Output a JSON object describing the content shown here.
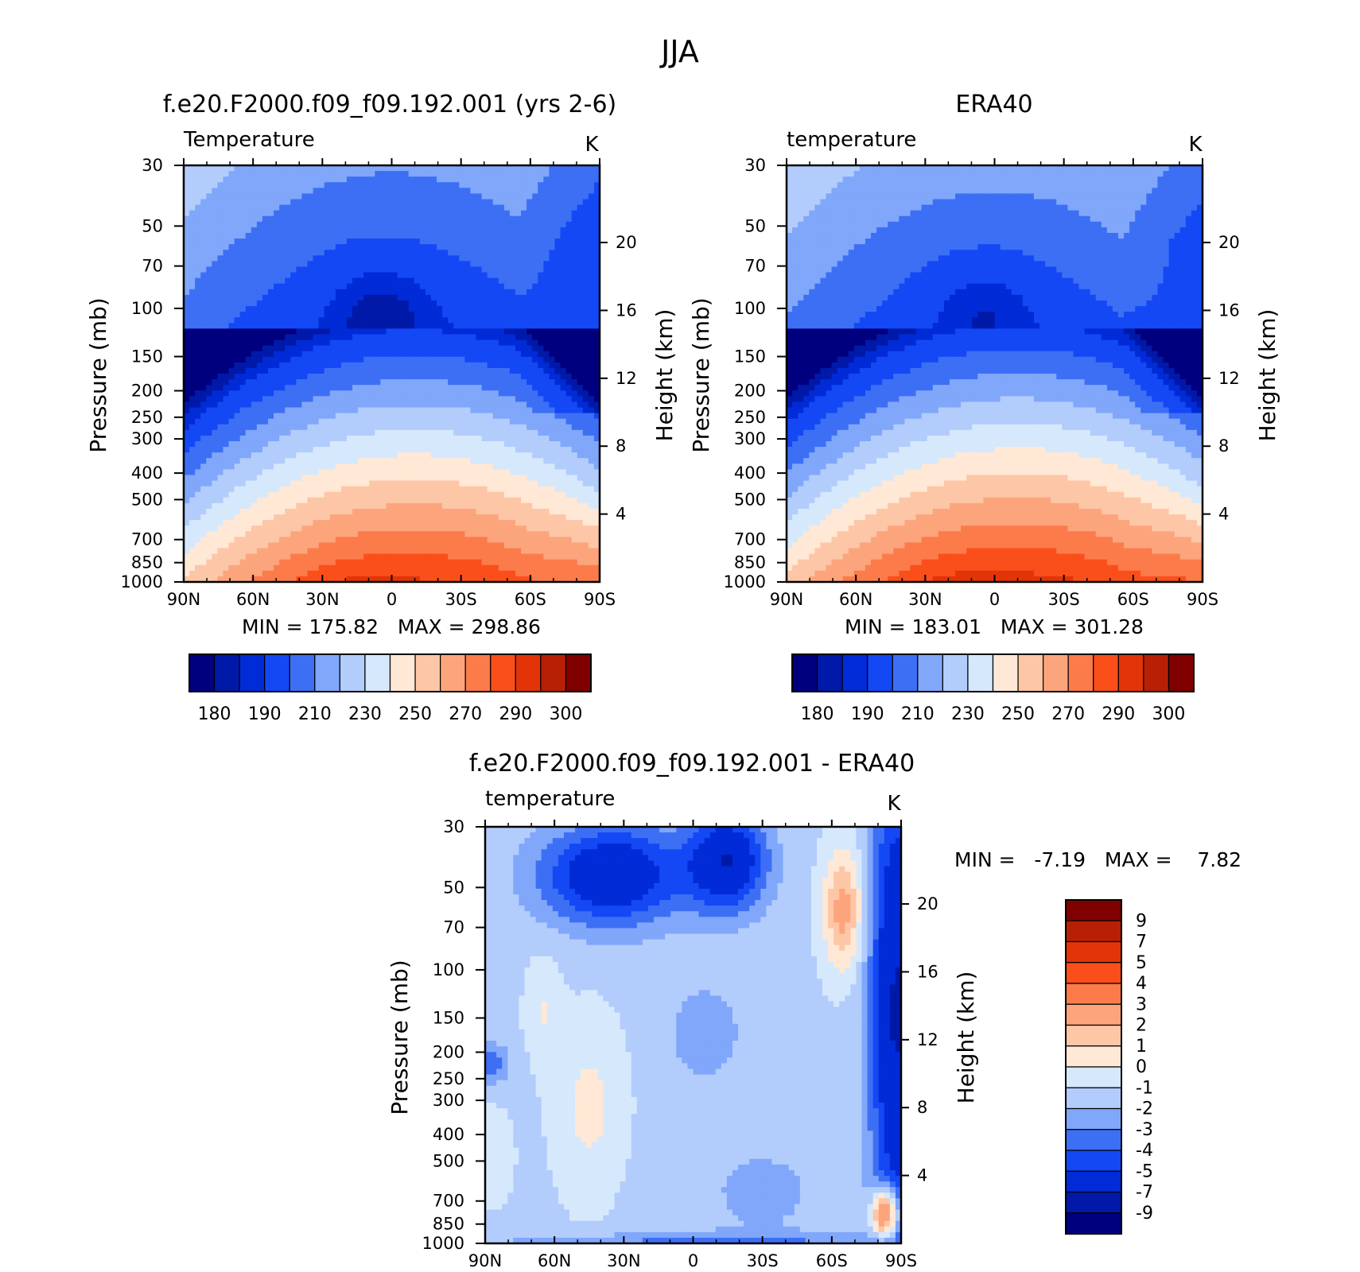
{
  "figure": {
    "title": "JJA"
  },
  "chart_data": [
    {
      "type": "heatmap",
      "id": "model",
      "title": "f.e20.F2000.f09_f09.192.001 (yrs 2-6)",
      "variable_label": "Temperature",
      "units": "K",
      "ylabel": "Pressure (mb)",
      "y2label": "Height (km)",
      "x_ticks": [
        "90N",
        "60N",
        "30N",
        "0",
        "30S",
        "60S",
        "90S"
      ],
      "y_ticks": [
        30,
        50,
        70,
        100,
        150,
        200,
        250,
        300,
        400,
        500,
        700,
        850,
        1000
      ],
      "y2_ticks": [
        20,
        16,
        12,
        8,
        4
      ],
      "stats": "MIN = 175.82   MAX = 298.86",
      "min": 175.82,
      "max": 298.86,
      "levels": [
        180,
        185,
        190,
        200,
        210,
        220,
        230,
        240,
        250,
        260,
        270,
        280,
        290,
        295,
        300
      ],
      "colorbar_labels": [
        "180",
        "190",
        "210",
        "230",
        "250",
        "270",
        "290",
        "300"
      ],
      "field": "absolute",
      "offset": 0
    },
    {
      "type": "heatmap",
      "id": "obs",
      "title": "ERA40",
      "variable_label": "temperature",
      "units": "K",
      "ylabel": "Pressure (mb)",
      "y2label": "Height (km)",
      "x_ticks": [
        "90N",
        "60N",
        "30N",
        "0",
        "30S",
        "60S",
        "90S"
      ],
      "y_ticks": [
        30,
        50,
        70,
        100,
        150,
        200,
        250,
        300,
        400,
        500,
        700,
        850,
        1000
      ],
      "y2_ticks": [
        20,
        16,
        12,
        8,
        4
      ],
      "stats": "MIN = 183.01   MAX = 301.28",
      "min": 183.01,
      "max": 301.28,
      "levels": [
        180,
        185,
        190,
        200,
        210,
        220,
        230,
        240,
        250,
        260,
        270,
        280,
        290,
        295,
        300
      ],
      "colorbar_labels": [
        "180",
        "190",
        "210",
        "230",
        "250",
        "270",
        "290",
        "300"
      ],
      "field": "absolute",
      "offset": 2.5
    },
    {
      "type": "heatmap",
      "id": "diff",
      "title": "f.e20.F2000.f09_f09.192.001 - ERA40",
      "variable_label": "temperature",
      "units": "K",
      "ylabel": "Pressure (mb)",
      "y2label": "Height (km)",
      "x_ticks": [
        "90N",
        "60N",
        "30N",
        "0",
        "30S",
        "60S",
        "90S"
      ],
      "y_ticks": [
        30,
        50,
        70,
        100,
        150,
        200,
        250,
        300,
        400,
        500,
        700,
        850,
        1000
      ],
      "y2_ticks": [
        20,
        16,
        12,
        8,
        4
      ],
      "stats": "MIN =   -7.19   MAX =    7.82",
      "min": -7.19,
      "max": 7.82,
      "levels": [
        -9,
        -7,
        -5,
        -4,
        -3,
        -2,
        -1,
        0,
        1,
        2,
        3,
        4,
        5,
        7,
        9
      ],
      "colorbar_labels": [
        "9",
        "7",
        "5",
        "4",
        "3",
        "2",
        "1",
        "0",
        "-1",
        "-2",
        "-3",
        "-4",
        "-5",
        "-7",
        "-9"
      ],
      "field": "difference"
    }
  ],
  "colors": {
    "palette": [
      "#00007f",
      "#0019a8",
      "#002bd6",
      "#1448f5",
      "#3d6ff5",
      "#80a7fa",
      "#b2ccfc",
      "#d6e8fc",
      "#ffe8d5",
      "#fdc6a6",
      "#fca57c",
      "#fc7b4b",
      "#fa4f1b",
      "#e33409",
      "#b82006",
      "#800000"
    ]
  }
}
